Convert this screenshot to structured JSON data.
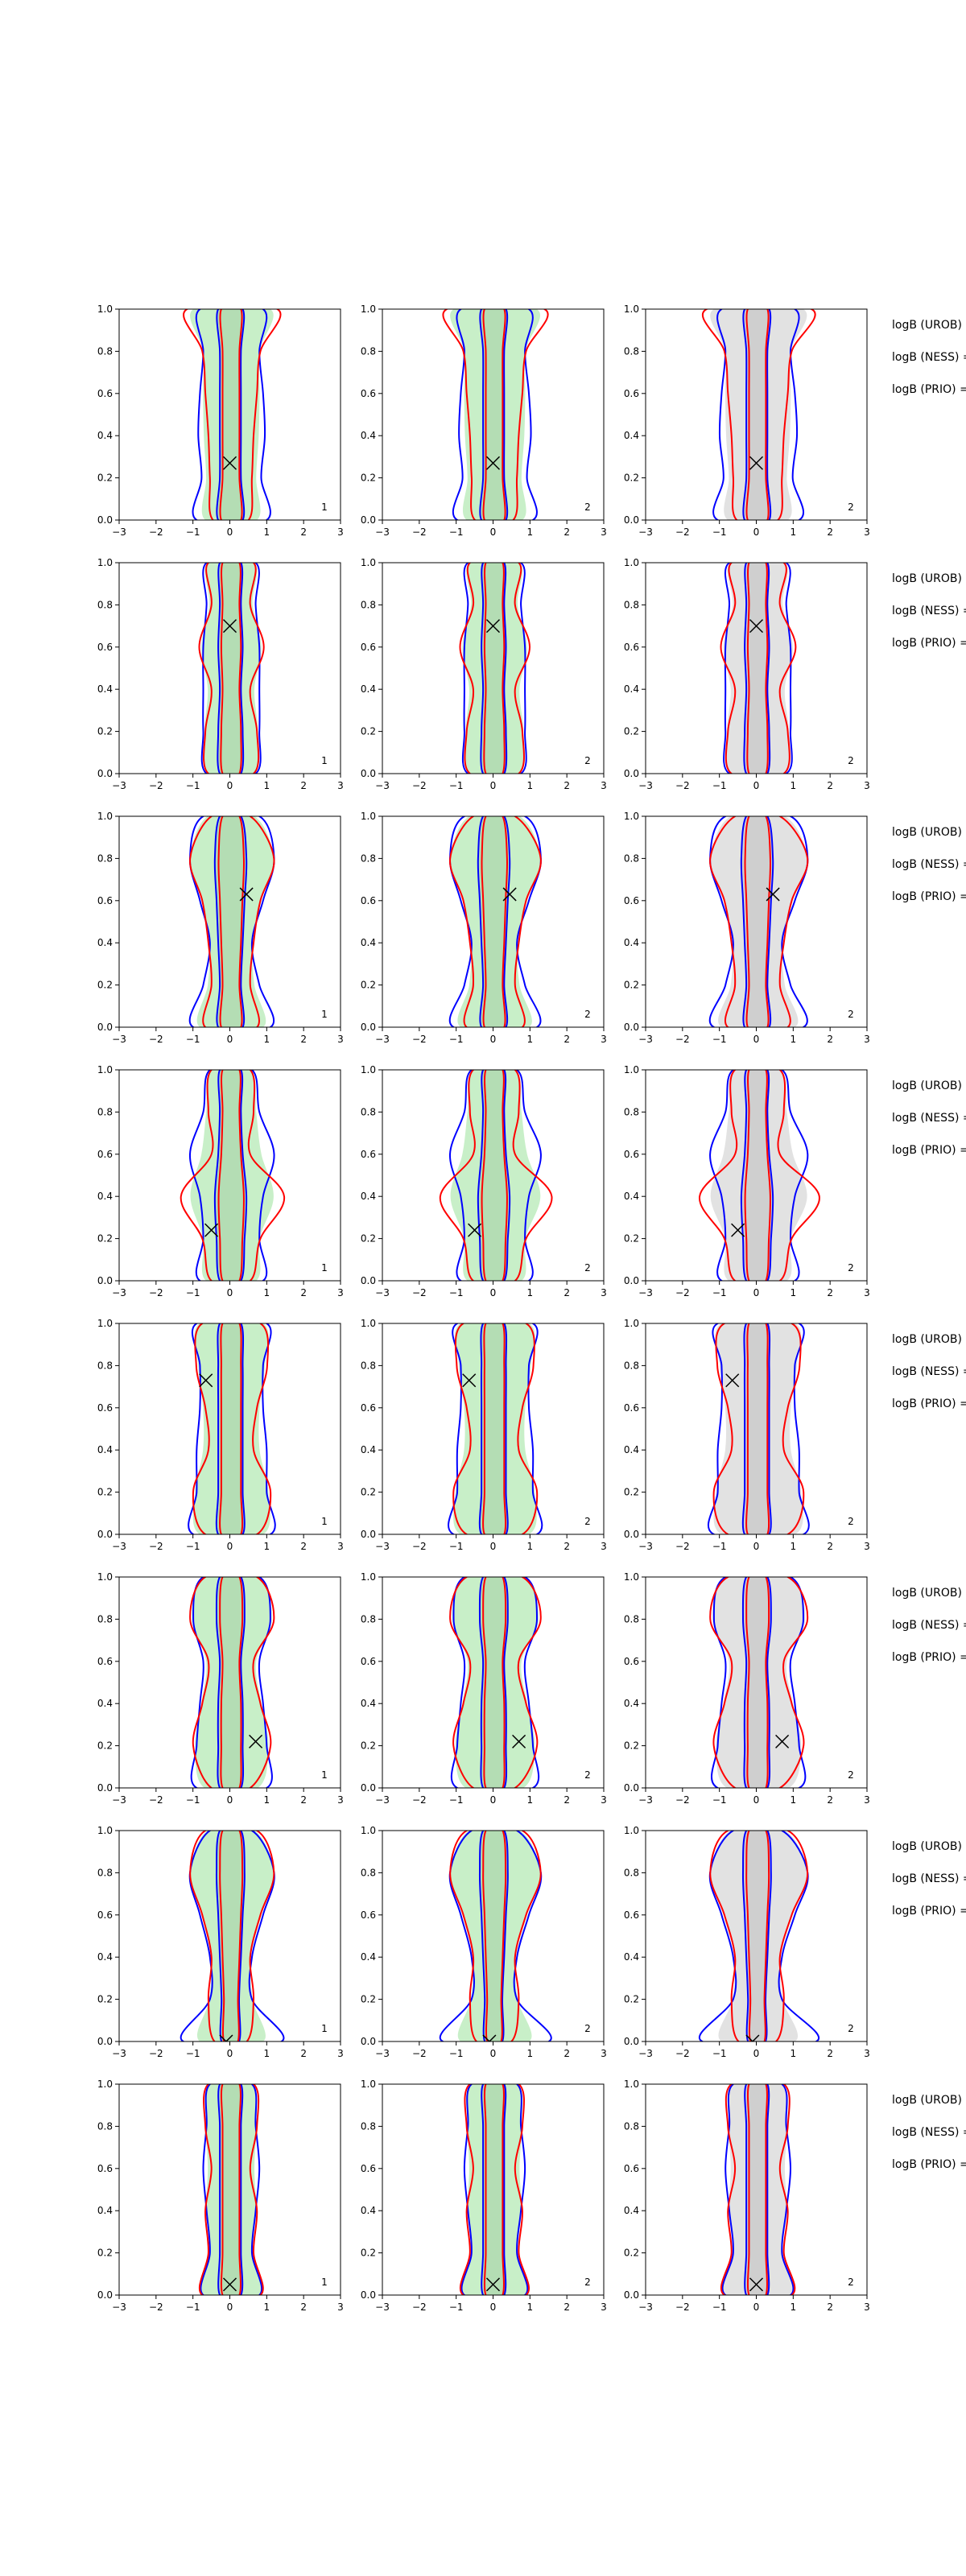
{
  "chart_data": {
    "type": "contour-grid",
    "rows": 8,
    "columns": 3,
    "xlim": [
      -3,
      3
    ],
    "ylim": [
      0.0,
      1.0
    ],
    "x_ticks": [
      -3,
      -2,
      -1,
      0,
      1,
      2,
      3
    ],
    "y_ticks": [
      "0.0",
      "0.2",
      "0.4",
      "0.6",
      "0.8",
      "1.0"
    ],
    "panel_index_labels": [
      "1",
      "2",
      "2"
    ],
    "fill_colors": [
      "#b6eab6",
      "#b6eab6",
      "#d8d8d8"
    ],
    "line_colors": {
      "primary": "#0000ff",
      "secondary": "#ff0000"
    },
    "annotation_labels": [
      "logB (UROB) =",
      "logB (NESS) =",
      "logB (PRIO) ="
    ],
    "markers": [
      {
        "row": 1,
        "x": 0.0,
        "y": 0.27
      },
      {
        "row": 2,
        "x": 0.0,
        "y": 0.7
      },
      {
        "row": 3,
        "x": 0.45,
        "y": 0.63
      },
      {
        "row": 4,
        "x": -0.5,
        "y": 0.24
      },
      {
        "row": 5,
        "x": -0.65,
        "y": 0.73
      },
      {
        "row": 6,
        "x": 0.7,
        "y": 0.22
      },
      {
        "row": 7,
        "x": -0.1,
        "y": 0.0
      },
      {
        "row": 8,
        "x": 0.0,
        "y": 0.05
      }
    ],
    "row_shapes": [
      {
        "blue_outer": [
          1.0,
          0.85,
          0.95,
          0.9,
          0.8,
          0.9
        ],
        "red_outer": [
          0.55,
          0.65,
          0.7,
          0.8,
          0.9,
          1.4
        ],
        "inner": [
          0.35,
          0.3,
          0.3,
          0.3,
          0.3,
          0.35
        ]
      },
      {
        "blue_outer": [
          0.7,
          0.8,
          0.8,
          0.8,
          0.7,
          0.7
        ],
        "red_outer": [
          0.7,
          0.8,
          0.6,
          1.0,
          0.6,
          0.7
        ],
        "inner": [
          0.3,
          0.35,
          0.3,
          0.35,
          0.3,
          0.3
        ]
      },
      {
        "blue_outer": [
          1.1,
          0.8,
          0.6,
          0.9,
          1.2,
          0.8
        ],
        "red_outer": [
          0.8,
          0.6,
          0.7,
          0.9,
          1.3,
          0.6
        ],
        "inner": [
          0.35,
          0.3,
          0.35,
          0.4,
          0.45,
          0.3
        ]
      },
      {
        "blue_outer": [
          0.9,
          0.8,
          0.9,
          1.2,
          0.8,
          0.6
        ],
        "red_outer": [
          0.6,
          0.9,
          1.6,
          0.6,
          0.7,
          0.6
        ],
        "inner": [
          0.3,
          0.4,
          0.45,
          0.35,
          0.3,
          0.3
        ]
      },
      {
        "blue_outer": [
          1.1,
          1.0,
          1.0,
          0.9,
          0.9,
          1.0
        ],
        "red_outer": [
          0.8,
          1.2,
          0.7,
          0.8,
          1.1,
          0.9
        ],
        "inner": [
          0.35,
          0.35,
          0.35,
          0.35,
          0.35,
          0.3
        ]
      },
      {
        "blue_outer": [
          1.0,
          1.0,
          0.9,
          0.8,
          1.1,
          0.8
        ],
        "red_outer": [
          0.6,
          1.2,
          0.9,
          0.7,
          1.3,
          0.8
        ],
        "inner": [
          0.3,
          0.35,
          0.35,
          0.3,
          0.4,
          0.3
        ]
      },
      {
        "blue_outer": [
          1.4,
          0.6,
          0.6,
          0.9,
          1.2,
          0.6
        ],
        "red_outer": [
          0.5,
          0.7,
          0.6,
          0.9,
          1.3,
          0.8
        ],
        "inner": [
          0.25,
          0.25,
          0.3,
          0.35,
          0.4,
          0.3
        ]
      },
      {
        "blue_outer": [
          0.8,
          0.6,
          0.7,
          0.8,
          0.7,
          0.6
        ],
        "red_outer": [
          0.9,
          0.7,
          0.8,
          0.6,
          0.8,
          0.7
        ],
        "inner": [
          0.3,
          0.3,
          0.3,
          0.3,
          0.3,
          0.3
        ]
      }
    ]
  }
}
